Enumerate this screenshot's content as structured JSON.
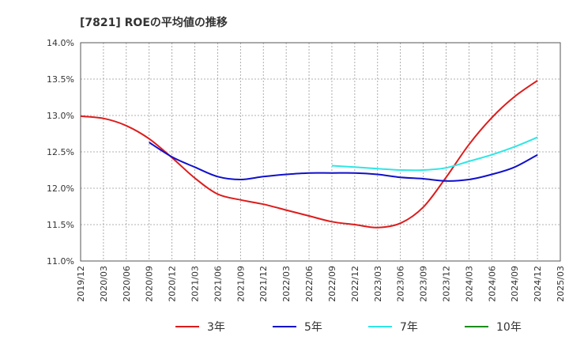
{
  "chart_data": {
    "type": "line",
    "title": "[7821]  ROEの平均値の推移",
    "xlabel": "",
    "ylabel": "",
    "ylim": [
      11.0,
      14.0
    ],
    "yticks": [
      "11.0%",
      "11.5%",
      "12.0%",
      "12.5%",
      "13.0%",
      "13.5%",
      "14.0%"
    ],
    "ytick_values": [
      11.0,
      11.5,
      12.0,
      12.5,
      13.0,
      13.5,
      14.0
    ],
    "categories": [
      "2019/12",
      "2020/03",
      "2020/06",
      "2020/09",
      "2020/12",
      "2021/03",
      "2021/06",
      "2021/09",
      "2021/12",
      "2022/03",
      "2022/06",
      "2022/09",
      "2022/12",
      "2023/03",
      "2023/06",
      "2023/09",
      "2023/12",
      "2024/03",
      "2024/06",
      "2024/09",
      "2024/12",
      "2025/03"
    ],
    "grid": true,
    "legend_position": "bottom",
    "series": [
      {
        "name": "3年",
        "color": "#dd1c1c",
        "values": [
          12.99,
          12.96,
          12.86,
          12.68,
          12.42,
          12.14,
          11.92,
          11.84,
          11.78,
          11.7,
          11.62,
          11.54,
          11.5,
          11.46,
          11.52,
          11.74,
          12.15,
          12.6,
          12.97,
          13.26,
          13.48,
          null
        ]
      },
      {
        "name": "5年",
        "color": "#1010cc",
        "values": [
          null,
          null,
          null,
          12.63,
          12.43,
          12.29,
          12.16,
          12.12,
          12.16,
          12.19,
          12.21,
          12.21,
          12.21,
          12.19,
          12.15,
          12.13,
          12.1,
          12.12,
          12.19,
          12.29,
          12.46,
          null
        ]
      },
      {
        "name": "7年",
        "color": "#2ee6e6",
        "values": [
          null,
          null,
          null,
          null,
          null,
          null,
          null,
          null,
          null,
          null,
          null,
          12.31,
          12.29,
          12.27,
          12.25,
          12.25,
          12.28,
          12.37,
          12.46,
          12.57,
          12.7,
          null
        ]
      },
      {
        "name": "10年",
        "color": "#1a8c1a",
        "values": [
          null,
          null,
          null,
          null,
          null,
          null,
          null,
          null,
          null,
          null,
          null,
          null,
          null,
          null,
          null,
          null,
          null,
          null,
          null,
          null,
          null,
          null
        ]
      }
    ]
  }
}
